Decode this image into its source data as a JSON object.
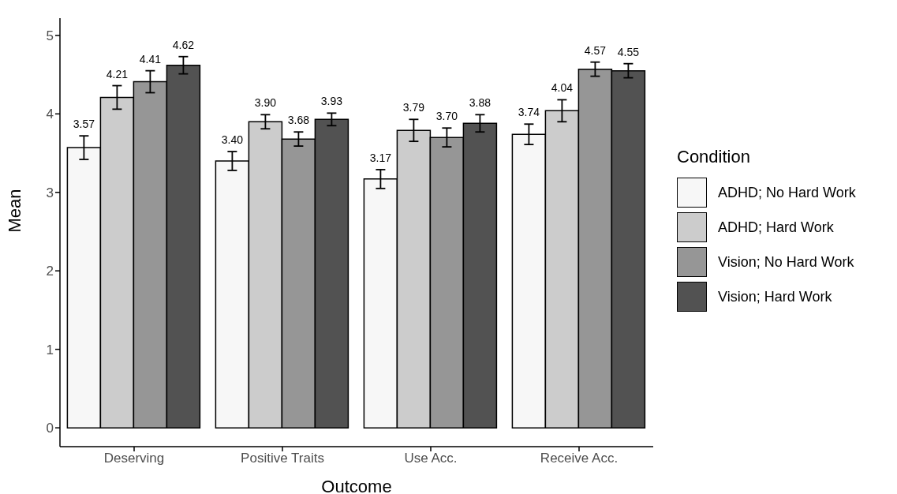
{
  "chart_data": {
    "type": "bar",
    "xlabel": "Outcome",
    "ylabel": "Mean",
    "legend_title": "Condition",
    "legend": "right",
    "categories": [
      "Deserving",
      "Positive Traits",
      "Use Acc.",
      "Receive Acc."
    ],
    "ylim": [
      -0.24,
      5.22
    ],
    "yticks": [
      0,
      1,
      2,
      3,
      4,
      5
    ],
    "series": [
      {
        "name": "ADHD; No Hard Work",
        "color": "#f7f7f7",
        "values": [
          3.57,
          3.4,
          3.17,
          3.74
        ],
        "errors": [
          0.15,
          0.12,
          0.12,
          0.13
        ],
        "value_labels": [
          "3.57",
          "3.40",
          "3.17",
          "3.74"
        ]
      },
      {
        "name": "ADHD; Hard Work",
        "color": "#cccccc",
        "values": [
          4.21,
          3.9,
          3.79,
          4.04
        ],
        "errors": [
          0.15,
          0.09,
          0.14,
          0.14
        ],
        "value_labels": [
          "4.21",
          "3.90",
          "3.79",
          "4.04"
        ]
      },
      {
        "name": "Vision; No Hard Work",
        "color": "#969696",
        "values": [
          4.41,
          3.68,
          3.7,
          4.57
        ],
        "errors": [
          0.14,
          0.09,
          0.12,
          0.09
        ],
        "value_labels": [
          "4.41",
          "3.68",
          "3.70",
          "4.57"
        ]
      },
      {
        "name": "Vision; Hard Work",
        "color": "#525252",
        "values": [
          4.62,
          3.93,
          3.88,
          4.55
        ],
        "errors": [
          0.11,
          0.08,
          0.11,
          0.09
        ],
        "value_labels": [
          "4.62",
          "3.93",
          "3.88",
          "4.55"
        ]
      }
    ]
  }
}
